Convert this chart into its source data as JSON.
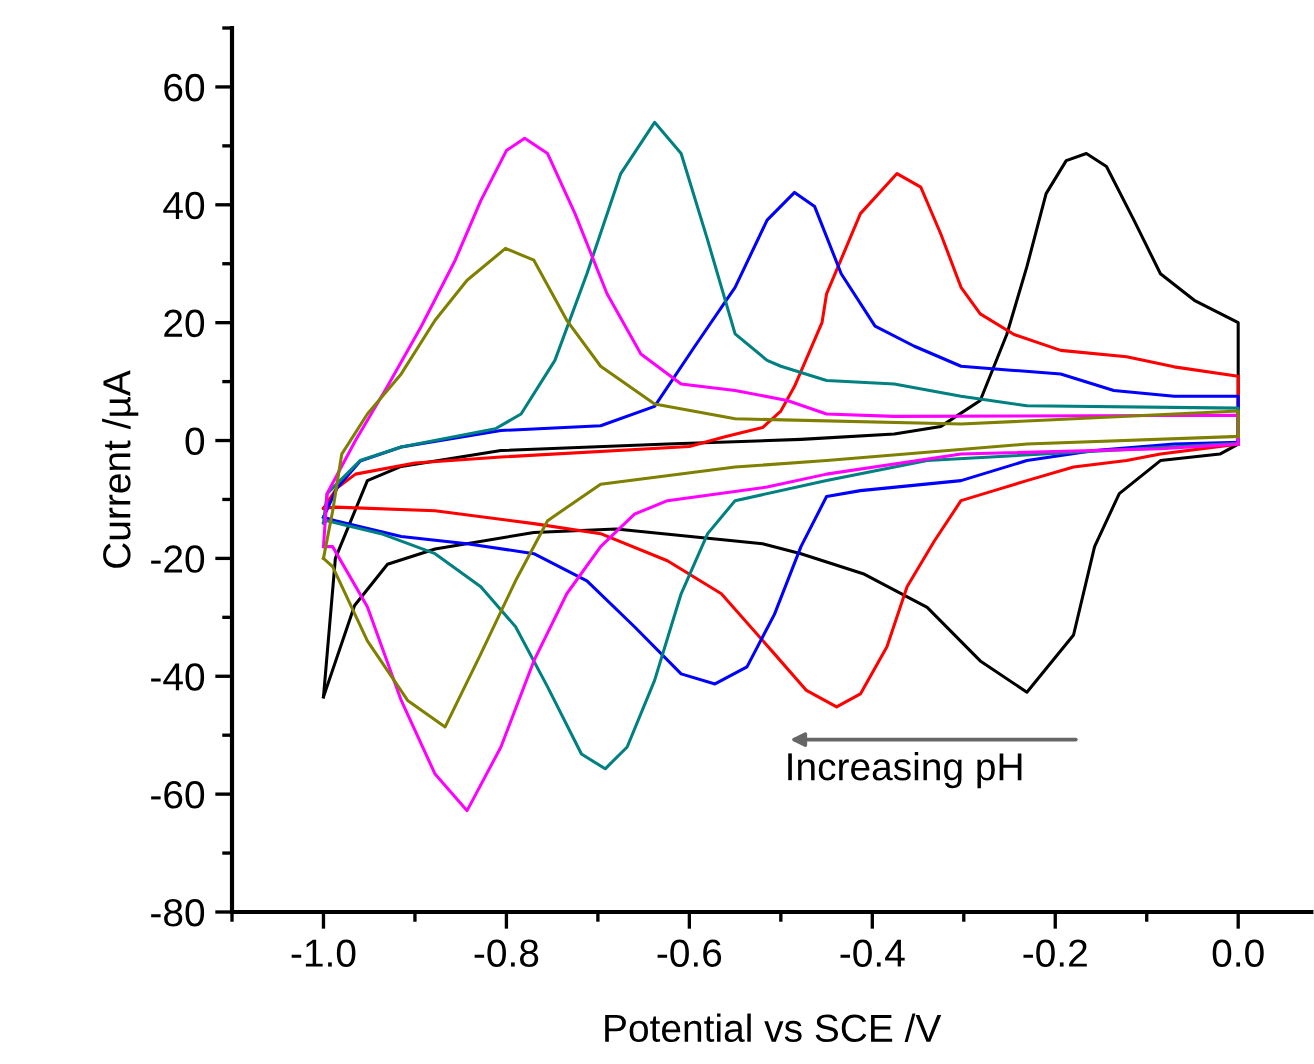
{
  "chart_data": {
    "type": "line",
    "xlabel": "Potential vs SCE /V",
    "ylabel": "Current /µA",
    "xlim": [
      -1.1,
      0.08
    ],
    "xticks": [
      {
        "value": -1.0,
        "label": "-1.0"
      },
      {
        "value": -0.8,
        "label": "-0.8"
      },
      {
        "value": -0.6,
        "label": "-0.6"
      },
      {
        "value": -0.4,
        "label": "-0.4"
      },
      {
        "value": -0.2,
        "label": "-0.2"
      },
      {
        "value": 0.0,
        "label": "0.0"
      }
    ],
    "ylim": [
      -80,
      70
    ],
    "yticks": [
      -80,
      -60,
      -40,
      -20,
      0,
      20,
      40,
      60
    ],
    "grid": false,
    "marker": "none",
    "line_style": "solid",
    "annotations": [
      "Increasing pH"
    ],
    "series": [
      {
        "color": "#000000",
        "x": [
          -1.0,
          -0.966,
          -0.93,
          -0.878,
          -0.77,
          -0.68,
          -0.52,
          -0.478,
          -0.41,
          -0.34,
          -0.282,
          -0.231,
          -0.18,
          -0.157,
          -0.13,
          -0.085,
          -0.02,
          0.0
        ],
        "values": [
          -43.5,
          -28,
          -21,
          -18.4,
          -15.6,
          -15,
          -17.5,
          -19.2,
          -22.6,
          -28.3,
          -37.4,
          -42.7,
          -33,
          -18,
          -9,
          -3.4,
          -2.3,
          -0.6
        ]
      },
      {
        "color": "#000000",
        "x": [
          -1.0,
          -0.987,
          -0.952,
          -0.915,
          -0.806,
          -0.624,
          -0.478,
          -0.376,
          -0.325,
          -0.282,
          -0.253,
          -0.231,
          -0.21,
          -0.188,
          -0.166,
          -0.144,
          -0.114,
          -0.085,
          -0.048,
          0.0,
          0.0
        ],
        "values": [
          -43.5,
          -20,
          -6.8,
          -4.4,
          -1.7,
          -0.6,
          0.2,
          1.1,
          2.4,
          6.8,
          18,
          29.5,
          41.9,
          47.5,
          48.7,
          46.5,
          37.4,
          28.3,
          23.8,
          20,
          -0.6
        ]
      },
      {
        "color": "#ff0000",
        "x": [
          -1.0,
          -0.987,
          -0.878,
          -0.77,
          -0.697,
          -0.624,
          -0.565,
          -0.507,
          -0.472,
          -0.439,
          -0.413,
          -0.384,
          -0.362,
          -0.332,
          -0.303,
          -0.267,
          -0.231,
          -0.18,
          -0.122,
          -0.085,
          0.0
        ],
        "values": [
          -11.5,
          -11.3,
          -11.9,
          -14.1,
          -15.8,
          -20.4,
          -26,
          -36.2,
          -42.4,
          -45.2,
          -43,
          -35,
          -24.8,
          -17,
          -10.2,
          -8.5,
          -6.8,
          -4.5,
          -3.4,
          -2.3,
          -0.6
        ]
      },
      {
        "color": "#ff0000",
        "x": [
          -1.0,
          -0.985,
          -0.965,
          -0.9,
          -0.806,
          -0.6,
          -0.56,
          -0.52,
          -0.5,
          -0.485,
          -0.455,
          -0.45,
          -0.413,
          -0.373,
          -0.347,
          -0.325,
          -0.303,
          -0.282,
          -0.245,
          -0.194,
          -0.122,
          -0.07,
          0.0,
          0.0
        ],
        "values": [
          -11.5,
          -8,
          -5.7,
          -3.8,
          -2.8,
          -1.0,
          0.7,
          2.2,
          5,
          9.2,
          20,
          24.9,
          38.5,
          45.3,
          43,
          35,
          26,
          21.5,
          18,
          15.3,
          14.2,
          12.5,
          10.9,
          -0.6
        ]
      },
      {
        "color": "#0000ff",
        "x": [
          -1.0,
          -0.987,
          -0.915,
          -0.843,
          -0.77,
          -0.712,
          -0.66,
          -0.609,
          -0.572,
          -0.537,
          -0.507,
          -0.478,
          -0.45,
          -0.413,
          -0.303,
          -0.231,
          -0.157,
          -0.07,
          0.0
        ],
        "values": [
          -13,
          -13.6,
          -16.3,
          -17.5,
          -19.2,
          -23.8,
          -31.6,
          -39.6,
          -41.3,
          -38.4,
          -29.5,
          -18,
          -9.5,
          -8.5,
          -6.8,
          -3.4,
          -1.7,
          -0.6,
          -0.3
        ]
      },
      {
        "color": "#0000ff",
        "x": [
          -1.0,
          -0.985,
          -0.96,
          -0.915,
          -0.806,
          -0.697,
          -0.638,
          -0.594,
          -0.55,
          -0.515,
          -0.485,
          -0.463,
          -0.434,
          -0.397,
          -0.354,
          -0.303,
          -0.245,
          -0.194,
          -0.136,
          -0.07,
          0.0,
          0.0
        ],
        "values": [
          -13,
          -8,
          -3.5,
          -1.1,
          1.7,
          2.5,
          5.8,
          16,
          26,
          37.4,
          42.1,
          39.7,
          28.3,
          19.4,
          16,
          12.6,
          11.9,
          11.3,
          8.5,
          7.5,
          7.5,
          -0.3
        ]
      },
      {
        "color": "#008080",
        "x": [
          -1.0,
          -0.996,
          -0.937,
          -0.878,
          -0.828,
          -0.79,
          -0.755,
          -0.718,
          -0.692,
          -0.668,
          -0.638,
          -0.609,
          -0.58,
          -0.55,
          -0.45,
          -0.34,
          -0.157,
          0.0
        ],
        "values": [
          -14,
          -13.6,
          -15.8,
          -19.2,
          -24.8,
          -31.6,
          -41.8,
          -53.2,
          -55.7,
          -52,
          -40.7,
          -26,
          -15.8,
          -10.2,
          -6.8,
          -3.4,
          -1.8,
          -0.5
        ]
      },
      {
        "color": "#008080",
        "x": [
          -1.0,
          -0.996,
          -0.96,
          -0.915,
          -0.812,
          -0.784,
          -0.747,
          -0.712,
          -0.675,
          -0.638,
          -0.609,
          -0.58,
          -0.55,
          -0.515,
          -0.5,
          -0.45,
          -0.376,
          -0.303,
          -0.231,
          0.0,
          0.0
        ],
        "values": [
          -14,
          -9,
          -3.4,
          -1.1,
          2,
          4.5,
          13.6,
          28.3,
          45.3,
          54,
          48.7,
          34,
          18.1,
          13.6,
          12.6,
          10.2,
          9.6,
          7.5,
          5.9,
          5.5,
          -0.5
        ]
      },
      {
        "color": "#ff00ff",
        "x": [
          -1.0,
          -0.99,
          -0.952,
          -0.915,
          -0.878,
          -0.843,
          -0.806,
          -0.77,
          -0.734,
          -0.697,
          -0.66,
          -0.624,
          -0.515,
          -0.45,
          -0.376,
          -0.303,
          -0.085,
          0.0
        ],
        "values": [
          -18,
          -18,
          -28.2,
          -44.1,
          -56.6,
          -62.8,
          -52,
          -37.4,
          -26,
          -18,
          -12.5,
          -10.2,
          -7.9,
          -5.7,
          -4,
          -2.3,
          -1.4,
          -0.6
        ]
      },
      {
        "color": "#ff00ff",
        "x": [
          -1.0,
          -0.996,
          -0.965,
          -0.93,
          -0.893,
          -0.856,
          -0.828,
          -0.8,
          -0.78,
          -0.755,
          -0.725,
          -0.69,
          -0.653,
          -0.609,
          -0.55,
          -0.493,
          -0.45,
          -0.376,
          0.0,
          0.0
        ],
        "values": [
          -18,
          -9,
          0,
          9.2,
          19.4,
          30.6,
          40.7,
          49.2,
          51.3,
          48.7,
          38.5,
          24.9,
          14.7,
          9.6,
          8.5,
          6.8,
          4.5,
          4.1,
          4.3,
          -0.6
        ]
      },
      {
        "color": "#808000",
        "x": [
          -1.0,
          -0.99,
          -0.952,
          -0.908,
          -0.867,
          -0.828,
          -0.79,
          -0.755,
          -0.697,
          -0.55,
          -0.45,
          -0.231,
          0.0
        ],
        "values": [
          -20,
          -21.4,
          -34,
          -44.1,
          -48.6,
          -36.2,
          -23.8,
          -13.6,
          -7.4,
          -4.5,
          -3.4,
          -0.6,
          0.7
        ]
      },
      {
        "color": "#808000",
        "x": [
          -1.0,
          -0.99,
          -0.98,
          -0.952,
          -0.915,
          -0.878,
          -0.843,
          -0.801,
          -0.77,
          -0.734,
          -0.697,
          -0.638,
          -0.55,
          -0.303,
          0.0,
          0.0
        ],
        "values": [
          -20,
          -12,
          -2.3,
          4.5,
          11.3,
          20.4,
          27.2,
          32.6,
          30.6,
          20.4,
          12.6,
          6.2,
          3.7,
          2.8,
          5,
          0.7
        ]
      }
    ]
  }
}
